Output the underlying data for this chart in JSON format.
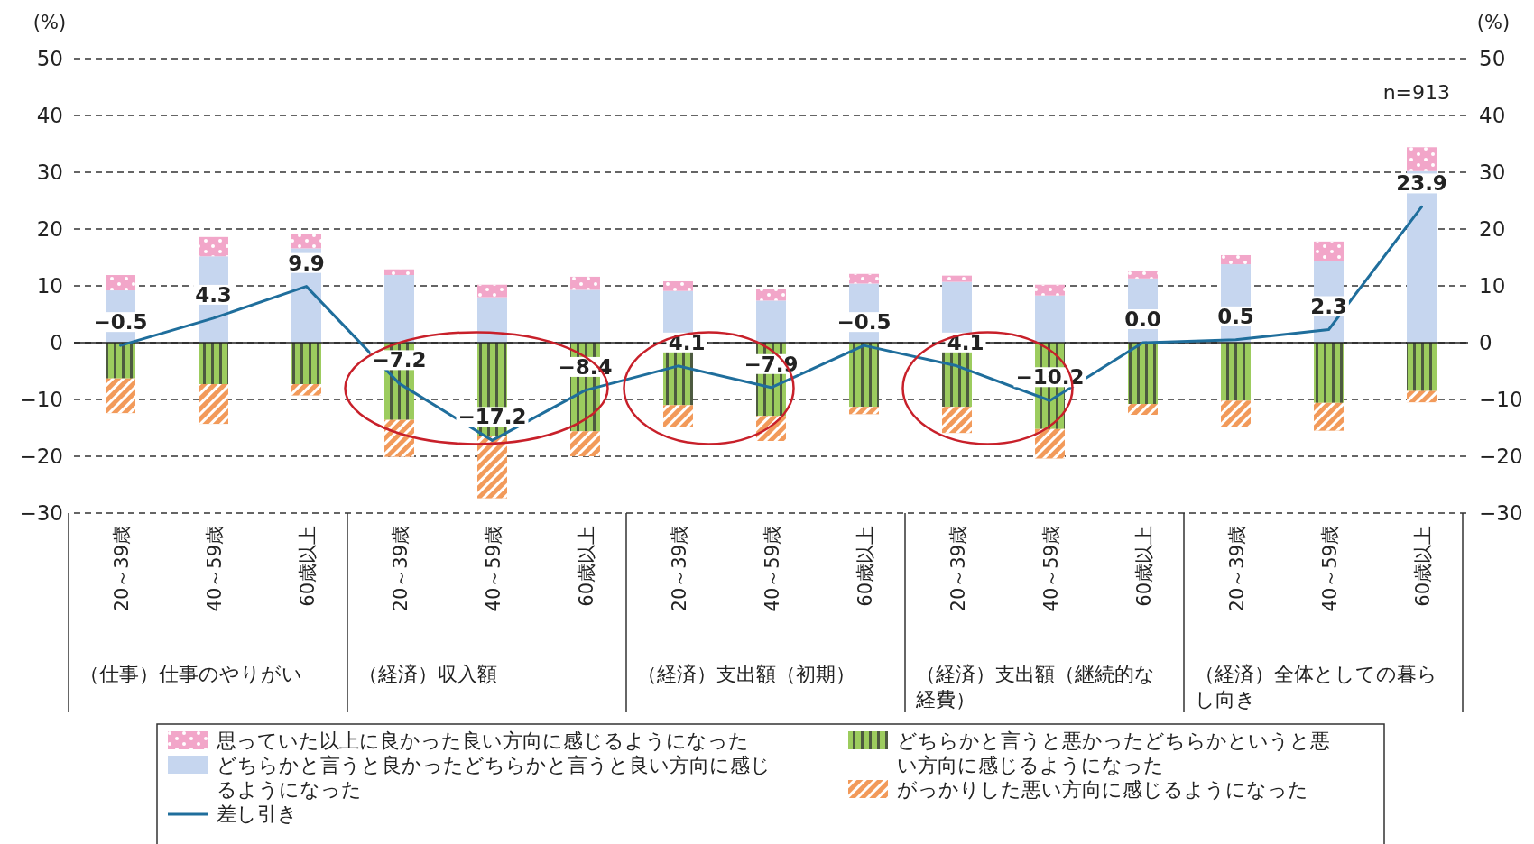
{
  "chart_data": {
    "type": "bar",
    "stacked": true,
    "ylabel": "(%)",
    "y2label": "(%)",
    "categories": [
      "20～39歳",
      "40～59歳",
      "60歳以上",
      "20～39歳",
      "40～59歳",
      "60歳以上",
      "20～39歳",
      "40～59歳",
      "60歳以上",
      "20～39歳",
      "40～59歳",
      "60歳以上",
      "20～39歳",
      "40～59歳",
      "60歳以上"
    ],
    "series": [
      {
        "name": "どちらかと言うと良かったどちらかと言うと良い方向に感じるようになった",
        "color": "#c6d6ef",
        "values": [
          9.2,
          15.2,
          16.6,
          11.9,
          8.0,
          9.3,
          9.1,
          7.4,
          10.4,
          10.7,
          8.3,
          11.3,
          13.8,
          14.4,
          30.2
        ]
      },
      {
        "name": "思っていた以上に良かった良い方向に感じるようになった",
        "color": "#f2a6c9",
        "values": [
          2.7,
          3.4,
          2.6,
          1.0,
          2.2,
          2.3,
          1.7,
          2.0,
          1.7,
          1.1,
          1.9,
          1.4,
          1.6,
          3.4,
          4.2
        ]
      },
      {
        "name": "どちらかと言うと悪かったどちらかというと悪い方向に感じるようになった",
        "color": "#9ccc5e",
        "values": [
          -6.3,
          -7.3,
          -7.3,
          -13.6,
          -16.5,
          -15.6,
          -11.0,
          -12.9,
          -11.3,
          -11.3,
          -15.2,
          -10.8,
          -10.2,
          -10.6,
          -8.5
        ]
      },
      {
        "name": "がっかりした悪い方向に感じるようになった",
        "color": "#f29a5a",
        "values": [
          -6.1,
          -7.0,
          -2.0,
          -6.5,
          -10.9,
          -4.4,
          -3.9,
          -4.4,
          -1.3,
          -4.6,
          -5.2,
          -1.9,
          -4.7,
          -4.9,
          -2.0
        ]
      },
      {
        "name": "差し引き",
        "type": "line",
        "color": "#1f6e9c",
        "values": [
          -0.5,
          4.3,
          9.9,
          -7.2,
          -17.2,
          -8.4,
          -4.1,
          -7.9,
          -0.5,
          -4.1,
          -10.2,
          0.0,
          0.5,
          2.3,
          23.9
        ],
        "value_labels": [
          "−0.5",
          "4.3",
          "9.9",
          "−7.2",
          "−17.2",
          "−8.4",
          "−4.1",
          "−7.9",
          "−0.5",
          "−4.1",
          "−10.2",
          "0.0",
          "0.5",
          "2.3",
          "23.9"
        ]
      }
    ],
    "ylim": [
      -30,
      50
    ],
    "yticks": [
      {
        "value": -30,
        "label": "−30"
      },
      {
        "value": -20,
        "label": "−20"
      },
      {
        "value": -10,
        "label": "−10"
      },
      0,
      10,
      20,
      30,
      40,
      50
    ],
    "y2lim": [
      -30,
      50
    ],
    "y2ticks": [
      {
        "value": -30,
        "label": "−30"
      },
      {
        "value": -20,
        "label": "−20"
      },
      {
        "value": -10,
        "label": "−10"
      },
      0,
      10,
      20,
      30,
      40,
      50
    ],
    "grid": "y",
    "legend": "bottom",
    "marker": "none",
    "line_style": "solid",
    "annotations": [
      "n=913",
      "（仕事）仕事のやりがい",
      "（経済）収入額",
      "（経済）支出額（初期）",
      "（経済）支出額（継続的な経費）",
      "（経済）全体としての暮らし向き"
    ]
  }
}
